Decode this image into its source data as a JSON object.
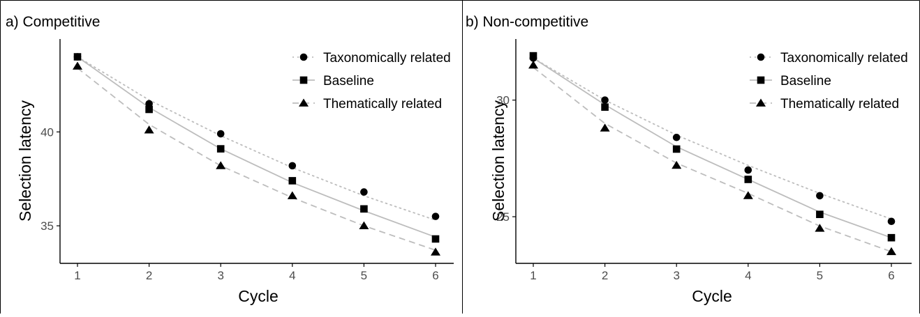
{
  "chart_data": [
    {
      "type": "line",
      "title": "a) Competitive",
      "xlabel": "Cycle",
      "ylabel": "Selection latency",
      "x": [
        1,
        2,
        3,
        4,
        5,
        6
      ],
      "xticks": [
        "1",
        "2",
        "3",
        "4",
        "5",
        "6"
      ],
      "yticks": [
        35,
        40
      ],
      "ylim": [
        33.0,
        44.8
      ],
      "grid": false,
      "legend_position": "top-right",
      "series": [
        {
          "name": "Taxonomically related",
          "marker": "circle",
          "line": "dotted",
          "values": [
            44.0,
            41.5,
            39.9,
            38.2,
            36.8,
            35.5
          ],
          "fit": [
            44.0,
            41.7,
            39.8,
            38.1,
            36.6,
            35.3
          ]
        },
        {
          "name": "Baseline",
          "marker": "square",
          "line": "solid",
          "values": [
            44.0,
            41.2,
            39.1,
            37.4,
            35.9,
            34.3
          ],
          "fit": [
            44.0,
            41.3,
            39.1,
            37.3,
            35.8,
            34.4
          ]
        },
        {
          "name": "Thematically related",
          "marker": "triangle",
          "line": "dashed",
          "values": [
            43.5,
            40.1,
            38.2,
            36.6,
            35.0,
            33.6
          ],
          "fit": [
            43.4,
            40.4,
            38.2,
            36.5,
            35.0,
            33.7
          ]
        }
      ]
    },
    {
      "type": "line",
      "title": "b) Non-competitive",
      "xlabel": "Cycle",
      "ylabel": "Selection latency",
      "x": [
        1,
        2,
        3,
        4,
        5,
        6
      ],
      "xticks": [
        "1",
        "2",
        "3",
        "4",
        "5",
        "6"
      ],
      "yticks": [
        25,
        30
      ],
      "ylim": [
        23.0,
        32.5
      ],
      "grid": false,
      "legend_position": "top-right",
      "series": [
        {
          "name": "Taxonomically related",
          "marker": "circle",
          "line": "dotted",
          "values": [
            31.8,
            30.0,
            28.4,
            27.0,
            25.9,
            24.8
          ],
          "fit": [
            31.8,
            30.0,
            28.5,
            27.2,
            26.0,
            24.9
          ]
        },
        {
          "name": "Baseline",
          "marker": "square",
          "line": "solid",
          "values": [
            31.9,
            29.7,
            27.9,
            26.6,
            25.1,
            24.1
          ],
          "fit": [
            31.8,
            29.8,
            28.0,
            26.6,
            25.2,
            24.1
          ]
        },
        {
          "name": "Thematically related",
          "marker": "triangle",
          "line": "dashed",
          "values": [
            31.5,
            28.8,
            27.2,
            25.9,
            24.5,
            23.5
          ],
          "fit": [
            31.4,
            29.0,
            27.3,
            26.0,
            24.6,
            23.5
          ]
        }
      ]
    }
  ],
  "colors": {
    "points": "#000000",
    "lines": "#bdbdbd",
    "axis": "#000000",
    "tick_label": "#4d4d4d",
    "frame": "#000000"
  }
}
